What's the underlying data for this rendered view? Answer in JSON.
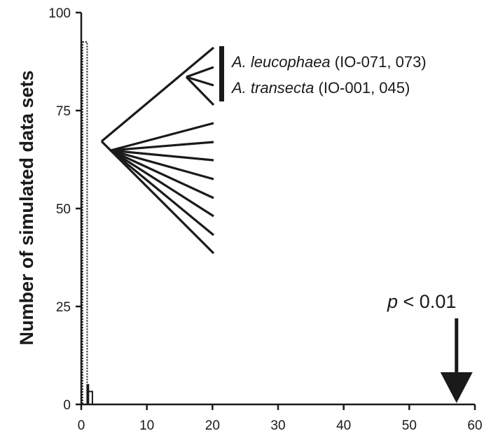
{
  "chart_data": {
    "type": "bar",
    "xlabel": "",
    "ylabel": "Number of simulated data sets",
    "xlim": [
      0,
      60
    ],
    "ylim": [
      0,
      100
    ],
    "xticks": [
      "0",
      "10",
      "20",
      "30",
      "40",
      "50",
      "60"
    ],
    "yticks": [
      "0",
      "25",
      "50",
      "75",
      "100"
    ],
    "grid": false,
    "bins": [
      {
        "x0": 0.2,
        "x1": 0.9,
        "value": 92.5,
        "style": "dotted"
      },
      {
        "x0": 0.9,
        "x1": 1.1,
        "value": 5,
        "style": "solid"
      },
      {
        "x0": 1.1,
        "x1": 1.7,
        "value": 3.3,
        "style": "solid"
      }
    ],
    "observed_value": 57.2,
    "annotation": {
      "p_symbol": "p",
      "p_rest": " < 0.01"
    },
    "inset_tree": {
      "clade_label_lines": [
        {
          "species": "A. leucophaea",
          "ids": " (IO-071, 073)"
        },
        {
          "species": "A. transecta",
          "ids": " (IO-001, 045)"
        }
      ]
    }
  },
  "colors": {
    "ink": "#1a1a1a",
    "background": "#ffffff"
  }
}
